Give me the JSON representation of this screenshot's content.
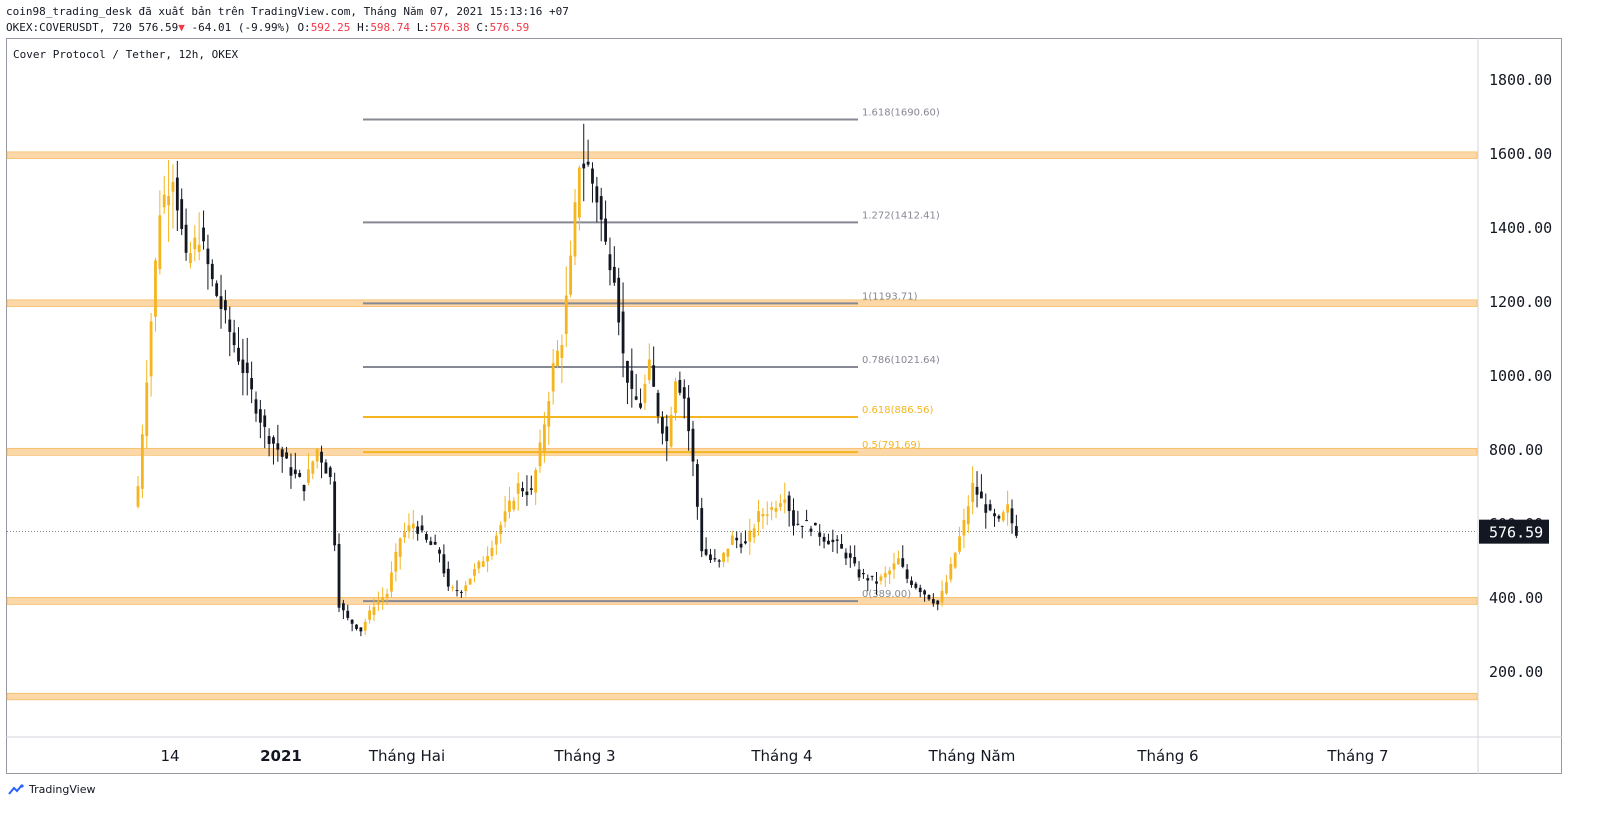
{
  "header": {
    "publisher_line": "coin98_trading_desk đã xuất bản trên TradingView.com, Tháng Năm 07, 2021 15:13:16 +07",
    "symbol": "OKEX:COVERUSDT, 720",
    "last": "576.59",
    "change": "-64.01 (-9.99%)",
    "ohlc": {
      "o_label": "O:",
      "o": "592.25",
      "h_label": "H:",
      "h": "598.74",
      "l_label": "L:",
      "l": "576.38",
      "c_label": "C:",
      "c": "576.59"
    }
  },
  "legend_title": "Cover Protocol / Tether, 12h, OKEX",
  "footer": {
    "brand": "TradingView",
    "logo_icon": "tradingview-logo-icon"
  },
  "colors": {
    "up": "#f5b51f",
    "down": "#131722",
    "zone": "#fcd8a8",
    "zone_border": "#f5b04a",
    "fib_gray": "#868993",
    "fib_gold": "#f5b51f",
    "price_tag_bg": "#131722"
  },
  "chart_data": {
    "type": "candlestick",
    "symbol": "COVERUSDT",
    "interval": "12h",
    "exchange": "OKEX",
    "ylim": [
      50,
      1900
    ],
    "y_ticks": [
      200,
      400,
      600,
      800,
      1000,
      1200,
      1400,
      1600,
      1800
    ],
    "y_tick_labels": [
      "200.00",
      "400.00",
      "600.00",
      "800.00",
      "1000.00",
      "1200.00",
      "1400.00",
      "1600.00",
      "1800.00"
    ],
    "x_ticks": [
      {
        "label": "14",
        "bold": false
      },
      {
        "label": "2021",
        "bold": true
      },
      {
        "label": "Tháng Hai",
        "bold": false
      },
      {
        "label": "Tháng 3",
        "bold": false
      },
      {
        "label": "Tháng 4",
        "bold": false
      },
      {
        "label": "Tháng Năm",
        "bold": false
      },
      {
        "label": "Tháng 6",
        "bold": false
      },
      {
        "label": "Tháng 7",
        "bold": false
      }
    ],
    "last_price": 576.59,
    "last_price_label": "576.59",
    "zones": [
      {
        "low": 1585,
        "high": 1603
      },
      {
        "low": 1185,
        "high": 1203
      },
      {
        "low": 783,
        "high": 802
      },
      {
        "low": 380,
        "high": 399
      },
      {
        "low": 122,
        "high": 140
      }
    ],
    "fib_levels": [
      {
        "ratio": "1.618",
        "price": 1690.6,
        "label": "1.618(1690.60)",
        "gold": false
      },
      {
        "ratio": "1.272",
        "price": 1412.41,
        "label": "1.272(1412.41)",
        "gold": false
      },
      {
        "ratio": "1",
        "price": 1193.71,
        "label": "1(1193.71)",
        "gold": false
      },
      {
        "ratio": "0.786",
        "price": 1021.64,
        "label": "0.786(1021.64)",
        "gold": false
      },
      {
        "ratio": "0.618",
        "price": 886.56,
        "label": "0.618(886.56)",
        "gold": true
      },
      {
        "ratio": "0.5",
        "price": 791.69,
        "label": "0.5(791.69)",
        "gold": true
      },
      {
        "ratio": "0",
        "price": 389.0,
        "label": "0(389.00)",
        "gold": false
      }
    ],
    "close_path": [
      [
        0,
        700
      ],
      [
        2,
        1000
      ],
      [
        5,
        1450
      ],
      [
        8,
        1550
      ],
      [
        11,
        1300
      ],
      [
        14,
        1380
      ],
      [
        17,
        1250
      ],
      [
        20,
        1150
      ],
      [
        23,
        1050
      ],
      [
        26,
        950
      ],
      [
        29,
        850
      ],
      [
        32,
        800
      ],
      [
        35,
        740
      ],
      [
        38,
        700
      ],
      [
        41,
        800
      ],
      [
        44,
        720
      ],
      [
        46,
        380
      ],
      [
        48,
        340
      ],
      [
        51,
        310
      ],
      [
        54,
        380
      ],
      [
        57,
        410
      ],
      [
        60,
        560
      ],
      [
        63,
        600
      ],
      [
        66,
        550
      ],
      [
        69,
        520
      ],
      [
        71,
        420
      ],
      [
        74,
        420
      ],
      [
        77,
        470
      ],
      [
        80,
        520
      ],
      [
        84,
        620
      ],
      [
        87,
        700
      ],
      [
        90,
        680
      ],
      [
        92,
        800
      ],
      [
        95,
        1020
      ],
      [
        97,
        1100
      ],
      [
        99,
        1300
      ],
      [
        101,
        1580
      ],
      [
        103,
        1560
      ],
      [
        105,
        1480
      ],
      [
        107,
        1350
      ],
      [
        109,
        1280
      ],
      [
        111,
        1050
      ],
      [
        113,
        940
      ],
      [
        115,
        920
      ],
      [
        117,
        1020
      ],
      [
        119,
        900
      ],
      [
        121,
        820
      ],
      [
        123,
        1000
      ],
      [
        125,
        940
      ],
      [
        127,
        760
      ],
      [
        129,
        530
      ],
      [
        131,
        500
      ],
      [
        133,
        490
      ],
      [
        136,
        560
      ],
      [
        139,
        540
      ],
      [
        142,
        620
      ],
      [
        145,
        640
      ],
      [
        148,
        680
      ],
      [
        150,
        600
      ],
      [
        152,
        600
      ],
      [
        154,
        590
      ],
      [
        157,
        560
      ],
      [
        160,
        540
      ],
      [
        163,
        500
      ],
      [
        165,
        460
      ],
      [
        167,
        450
      ],
      [
        169,
        440
      ],
      [
        172,
        470
      ],
      [
        174,
        500
      ],
      [
        176,
        450
      ],
      [
        179,
        420
      ],
      [
        181,
        400
      ],
      [
        183,
        380
      ],
      [
        185,
        440
      ],
      [
        187,
        520
      ],
      [
        189,
        600
      ],
      [
        191,
        700
      ],
      [
        193,
        660
      ],
      [
        195,
        620
      ],
      [
        197,
        600
      ],
      [
        199,
        640
      ],
      [
        200,
        600
      ],
      [
        201,
        576.59
      ]
    ],
    "annotations": [
      {
        "text": "1600.00",
        "type": "resistance"
      },
      {
        "text": "1200.00",
        "type": "resistance"
      },
      {
        "text": "800.00",
        "type": "resistance"
      },
      {
        "text": "400.00",
        "type": "support"
      }
    ]
  }
}
